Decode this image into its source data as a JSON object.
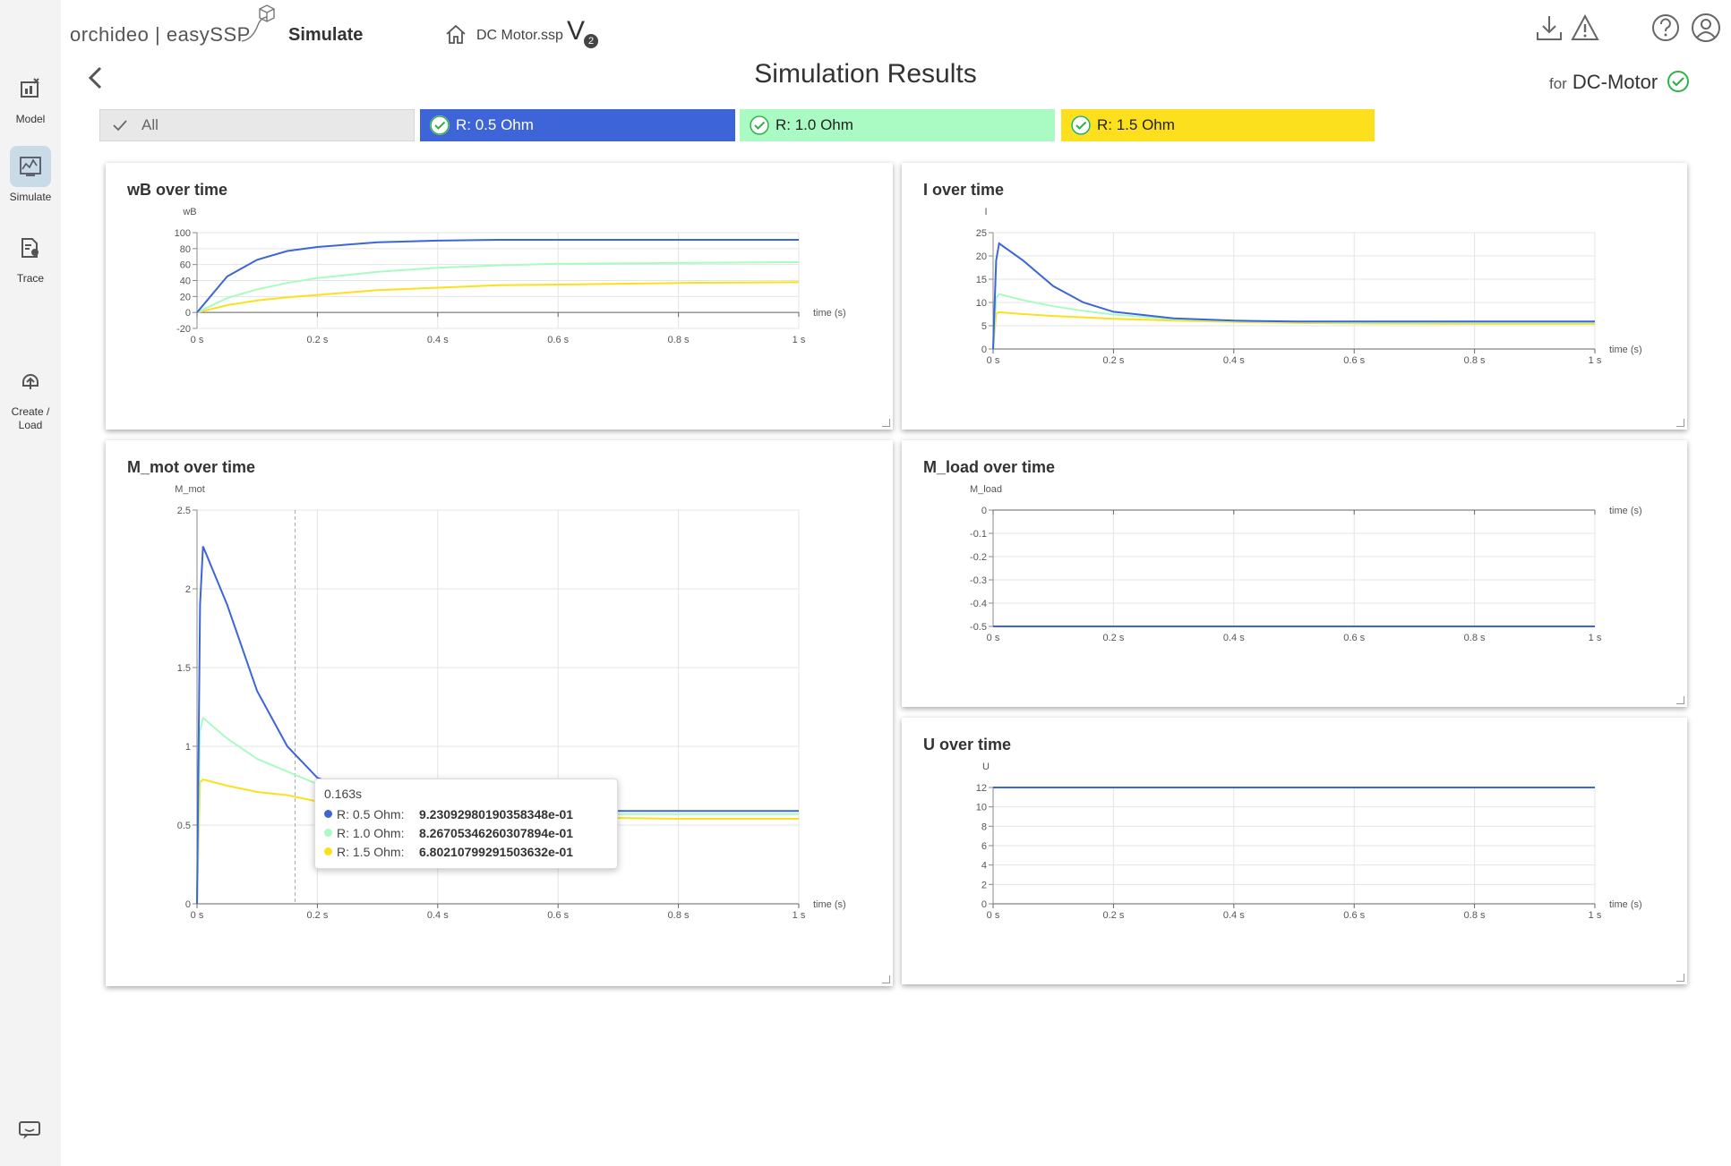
{
  "app": {
    "brand": "orchideo | easySSP",
    "section": "Simulate",
    "file_name": "DC Motor.ssp",
    "version_letter": "V",
    "version_number": "2"
  },
  "sidebar": {
    "items": [
      {
        "label": "Model",
        "icon": "model-icon"
      },
      {
        "label": "Simulate",
        "icon": "simulate-icon",
        "active": true
      },
      {
        "label": "Trace",
        "icon": "trace-icon"
      },
      {
        "label": "Create / Load",
        "icon": "create-load-icon"
      }
    ],
    "feedback_icon": "feedback-icon"
  },
  "header_icons": [
    "download-icon",
    "warning-icon",
    "help-icon",
    "user-icon"
  ],
  "page": {
    "title": "Simulation Results",
    "for_prefix": "for",
    "model_name": "DC-Motor"
  },
  "filters": [
    {
      "label": "All",
      "bg": "#e8e8e8",
      "color": "#666"
    },
    {
      "label": "R: 0.5 Ohm",
      "bg": "#3d65d8",
      "color": "#ffffff"
    },
    {
      "label": "R: 1.0 Ohm",
      "bg": "#a9fbc3",
      "color": "#222222"
    },
    {
      "label": "R: 1.5 Ohm",
      "bg": "#fde01d",
      "color": "#222222"
    }
  ],
  "series_colors": {
    "r05": "#3d65d8",
    "r10": "#a9fbc3",
    "r15": "#fde01d"
  },
  "x_axis": {
    "label": "time (s)",
    "ticks": [
      "0 s",
      "0.2 s",
      "0.4 s",
      "0.6 s",
      "0.8 s",
      "1 s"
    ]
  },
  "chart_data": [
    {
      "id": "wB",
      "type": "line",
      "title": "wB over time",
      "ylabel": "wB",
      "xlabel": "time (s)",
      "ylim": [
        -20,
        100
      ],
      "yticks": [
        -20,
        0,
        20,
        40,
        60,
        80,
        100
      ],
      "x": [
        0,
        0.05,
        0.1,
        0.15,
        0.2,
        0.3,
        0.4,
        0.5,
        0.6,
        0.8,
        1.0
      ],
      "series": [
        {
          "name": "R: 0.5 Ohm",
          "values": [
            0,
            45,
            66,
            77,
            82,
            88,
            90,
            91,
            91,
            91,
            91
          ]
        },
        {
          "name": "R: 1.0 Ohm",
          "values": [
            0,
            18,
            29,
            37,
            43,
            51,
            56,
            59,
            61,
            62,
            63
          ]
        },
        {
          "name": "R: 1.5 Ohm",
          "values": [
            0,
            9,
            15,
            19,
            22,
            28,
            31,
            34,
            35,
            37,
            38
          ]
        }
      ],
      "grid": true
    },
    {
      "id": "I",
      "type": "line",
      "title": "I over time",
      "ylabel": "I",
      "xlabel": "time (s)",
      "ylim": [
        0,
        25
      ],
      "yticks": [
        0,
        5,
        10,
        15,
        20,
        25
      ],
      "x": [
        0,
        0.005,
        0.01,
        0.05,
        0.1,
        0.15,
        0.2,
        0.3,
        0.4,
        0.5,
        0.6,
        0.8,
        1.0
      ],
      "series": [
        {
          "name": "R: 0.5 Ohm",
          "values": [
            0,
            19,
            22.7,
            19,
            13.5,
            10,
            8,
            6.6,
            6.1,
            5.9,
            5.9,
            5.9,
            5.9
          ]
        },
        {
          "name": "R: 1.0 Ohm",
          "values": [
            0,
            11,
            11.8,
            10.5,
            9.2,
            8.2,
            7.4,
            6.4,
            6.0,
            5.8,
            5.7,
            5.7,
            5.7
          ]
        },
        {
          "name": "R: 1.5 Ohm",
          "values": [
            0,
            7.6,
            7.9,
            7.5,
            7.1,
            6.8,
            6.5,
            6.1,
            5.8,
            5.6,
            5.5,
            5.4,
            5.4
          ]
        }
      ],
      "grid": true
    },
    {
      "id": "M_mot",
      "type": "line",
      "title": "M_mot over time",
      "ylabel": "M_mot",
      "xlabel": "time (s)",
      "ylim": [
        0,
        2.5
      ],
      "yticks": [
        0,
        0.5,
        1,
        1.5,
        2,
        2.5
      ],
      "x": [
        0,
        0.005,
        0.01,
        0.05,
        0.1,
        0.15,
        0.2,
        0.3,
        0.4,
        0.5,
        0.6,
        0.8,
        1.0
      ],
      "series": [
        {
          "name": "R: 0.5 Ohm",
          "values": [
            0,
            1.9,
            2.27,
            1.9,
            1.35,
            1.0,
            0.8,
            0.66,
            0.61,
            0.59,
            0.59,
            0.59,
            0.59
          ]
        },
        {
          "name": "R: 1.0 Ohm",
          "values": [
            0,
            1.1,
            1.18,
            1.05,
            0.92,
            0.84,
            0.76,
            0.66,
            0.6,
            0.58,
            0.57,
            0.57,
            0.57
          ]
        },
        {
          "name": "R: 1.5 Ohm",
          "values": [
            0,
            0.77,
            0.79,
            0.75,
            0.71,
            0.69,
            0.65,
            0.61,
            0.58,
            0.56,
            0.55,
            0.54,
            0.54
          ]
        }
      ],
      "cursor_x": 0.163,
      "grid": true
    },
    {
      "id": "M_load",
      "type": "line",
      "title": "M_load over time",
      "ylabel": "M_load",
      "xlabel": "time (s)",
      "ylim": [
        -0.5,
        0
      ],
      "yticks": [
        0,
        -0.1,
        -0.2,
        -0.3,
        -0.4,
        -0.5
      ],
      "x": [
        0,
        1.0
      ],
      "series": [
        {
          "name": "R: 0.5 Ohm",
          "values": [
            -0.5,
            -0.5
          ]
        },
        {
          "name": "R: 1.0 Ohm",
          "values": [
            -0.5,
            -0.5
          ]
        },
        {
          "name": "R: 1.5 Ohm",
          "values": [
            -0.5,
            -0.5
          ]
        }
      ],
      "grid": true
    },
    {
      "id": "U",
      "type": "line",
      "title": "U over time",
      "ylabel": "U",
      "xlabel": "time (s)",
      "ylim": [
        0,
        12
      ],
      "yticks": [
        0,
        2,
        4,
        6,
        8,
        10,
        12
      ],
      "x": [
        0,
        1.0
      ],
      "series": [
        {
          "name": "R: 0.5 Ohm",
          "values": [
            12,
            12
          ]
        },
        {
          "name": "R: 1.0 Ohm",
          "values": [
            12,
            12
          ]
        },
        {
          "name": "R: 1.5 Ohm",
          "values": [
            12,
            12
          ]
        }
      ],
      "grid": true
    }
  ],
  "tooltip": {
    "time": "0.163s",
    "rows": [
      {
        "name": "R: 0.5 Ohm:",
        "value": "9.23092980190358348e-01"
      },
      {
        "name": "R: 1.0 Ohm:",
        "value": "8.26705346260307894e-01"
      },
      {
        "name": "R: 1.5 Ohm:",
        "value": "6.80210799291503632e-01"
      }
    ]
  }
}
